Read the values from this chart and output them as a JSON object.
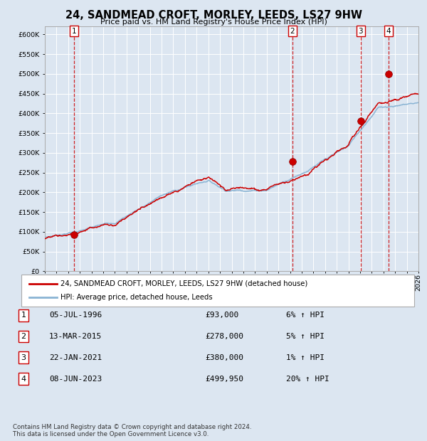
{
  "title": "24, SANDMEAD CROFT, MORLEY, LEEDS, LS27 9HW",
  "subtitle": "Price paid vs. HM Land Registry's House Price Index (HPI)",
  "background_color": "#dce6f1",
  "plot_bg_color": "#dce6f1",
  "hpi_line_color": "#8ab4d4",
  "price_line_color": "#cc0000",
  "marker_color": "#cc0000",
  "dashed_line_color": "#cc0000",
  "ylim": [
    0,
    620000
  ],
  "yticks": [
    0,
    50000,
    100000,
    150000,
    200000,
    250000,
    300000,
    350000,
    400000,
    450000,
    500000,
    550000,
    600000
  ],
  "transactions": [
    {
      "label": "1",
      "date_str": "05-JUL-1996",
      "year": 1996.52,
      "price": 93000,
      "pct": "6%",
      "dir": "↑"
    },
    {
      "label": "2",
      "date_str": "13-MAR-2015",
      "year": 2015.19,
      "price": 278000,
      "pct": "5%",
      "dir": "↑"
    },
    {
      "label": "3",
      "date_str": "22-JAN-2021",
      "year": 2021.06,
      "price": 380000,
      "pct": "1%",
      "dir": "↑"
    },
    {
      "label": "4",
      "date_str": "08-JUN-2023",
      "year": 2023.44,
      "price": 499950,
      "pct": "20%",
      "dir": "↑"
    }
  ],
  "legend_entries": [
    {
      "label": "24, SANDMEAD CROFT, MORLEY, LEEDS, LS27 9HW (detached house)",
      "color": "#cc0000"
    },
    {
      "label": "HPI: Average price, detached house, Leeds",
      "color": "#8ab4d4"
    }
  ],
  "footnote": "Contains HM Land Registry data © Crown copyright and database right 2024.\nThis data is licensed under the Open Government Licence v3.0.",
  "xmin": 1994,
  "xmax": 2026
}
